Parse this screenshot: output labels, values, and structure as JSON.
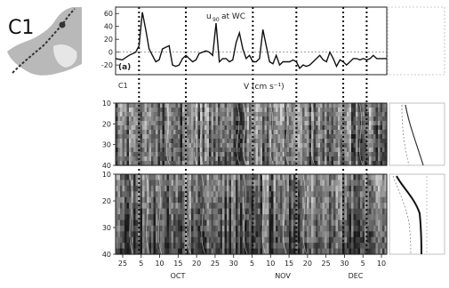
{
  "inset_map": {
    "label": "C1",
    "land_color": "#b9b9b9",
    "sea_color": "#e6e6e6",
    "track_color": "#333333"
  },
  "panels": {
    "a": {
      "tag": "(a)",
      "title_main": "u",
      "title_sub": "90",
      "title_rest": "at WC"
    },
    "b": {
      "tag": "C1",
      "title": "V (cm s⁻¹)"
    }
  },
  "chart_data": [
    {
      "type": "line",
      "panel": "a",
      "title": "u90 at WC",
      "ylim": [
        -35,
        70
      ],
      "yticks": [
        60,
        40,
        20,
        0,
        -20
      ],
      "ytick_labels": [
        "60",
        "40",
        "20",
        "0",
        "-20"
      ],
      "x_days": [
        0,
        2,
        4,
        6,
        7,
        8,
        9,
        10,
        11,
        12,
        13,
        14,
        16,
        17,
        18,
        19,
        20,
        21,
        22,
        23,
        24,
        25,
        26,
        27,
        28,
        29,
        30,
        31,
        32,
        33,
        34,
        35,
        36,
        37,
        38,
        39,
        40,
        41,
        42,
        43,
        44,
        45,
        46,
        47,
        48,
        49,
        50,
        52,
        53,
        54,
        55,
        56,
        57,
        58,
        59,
        60,
        61,
        62,
        63,
        64,
        65,
        66,
        67,
        68,
        69,
        70,
        71,
        72,
        73,
        74,
        75,
        76,
        77,
        78,
        79,
        80,
        81
      ],
      "values": [
        -10,
        -12,
        -5,
        0,
        10,
        62,
        35,
        5,
        -5,
        -15,
        -12,
        5,
        10,
        -20,
        -22,
        -20,
        -10,
        -5,
        -10,
        -15,
        -12,
        -2,
        0,
        2,
        0,
        -5,
        45,
        -15,
        -10,
        -10,
        -15,
        -12,
        15,
        30,
        5,
        -10,
        -5,
        -15,
        -15,
        -10,
        35,
        10,
        -15,
        -18,
        -5,
        -20,
        -15,
        -15,
        -12,
        -15,
        -25,
        -20,
        -22,
        -20,
        -15,
        -10,
        -5,
        -12,
        -15,
        0,
        -10,
        -22,
        -12,
        -15,
        -20,
        -15,
        -10,
        -10,
        -12,
        -10,
        -12,
        -10,
        -5,
        -10,
        -10,
        -10,
        -10
      ]
    },
    {
      "type": "heatmap",
      "panel": "b",
      "title": "V (cm s⁻¹)",
      "ylim": [
        40,
        10
      ],
      "yticks": [
        10,
        20,
        30,
        40
      ],
      "ytick_labels": [
        "10",
        "20",
        "30",
        "40"
      ]
    },
    {
      "type": "heatmap",
      "panel": "c",
      "ylim": [
        40,
        10
      ],
      "yticks": [
        10,
        20,
        30,
        40
      ],
      "ytick_labels": [
        "10",
        "20",
        "30",
        "40"
      ],
      "x_tick_labels": [
        "25",
        "5",
        "10",
        "15",
        "20",
        "25",
        "30",
        "5",
        "10",
        "15",
        "20",
        "25",
        "30",
        "5",
        "10"
      ],
      "month_labels": [
        "OCT",
        "NOV",
        "DEC"
      ]
    }
  ],
  "event_days": [
    7,
    21,
    41,
    54,
    68,
    75
  ]
}
